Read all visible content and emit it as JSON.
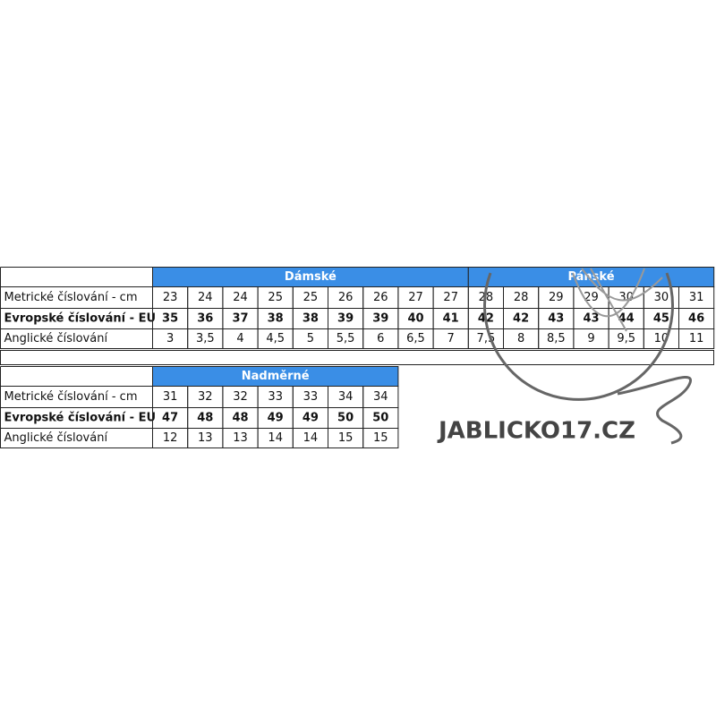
{
  "tables": [
    {
      "groups": [
        "Dámské",
        "Pánské"
      ],
      "rows": [
        {
          "label": "Metrické číslování - cm",
          "values": [
            "23",
            "24",
            "24",
            "25",
            "25",
            "26",
            "26",
            "27",
            "27",
            "28",
            "28",
            "29",
            "29",
            "30",
            "30",
            "31"
          ]
        },
        {
          "label": "Evropské číslování - EU",
          "values": [
            "35",
            "36",
            "37",
            "38",
            "38",
            "39",
            "39",
            "40",
            "41",
            "42",
            "42",
            "43",
            "43",
            "44",
            "45",
            "46"
          ]
        },
        {
          "label": "Anglické číslování",
          "values": [
            "3",
            "3,5",
            "4",
            "4,5",
            "5",
            "5,5",
            "6",
            "6,5",
            "7",
            "7,5",
            "8",
            "8,5",
            "9",
            "9,5",
            "10",
            "11"
          ]
        }
      ]
    },
    {
      "groups": [
        "Nadměrné"
      ],
      "rows": [
        {
          "label": "Metrické číslování - cm",
          "values": [
            "31",
            "32",
            "32",
            "33",
            "33",
            "34",
            "34"
          ]
        },
        {
          "label": "Evropské číslování - EU",
          "values": [
            "47",
            "48",
            "48",
            "49",
            "49",
            "50",
            "50"
          ]
        },
        {
          "label": "Anglické číslování",
          "values": [
            "12",
            "13",
            "13",
            "14",
            "14",
            "15",
            "15"
          ]
        }
      ]
    }
  ],
  "watermark": "JABLICKO17.CZ"
}
